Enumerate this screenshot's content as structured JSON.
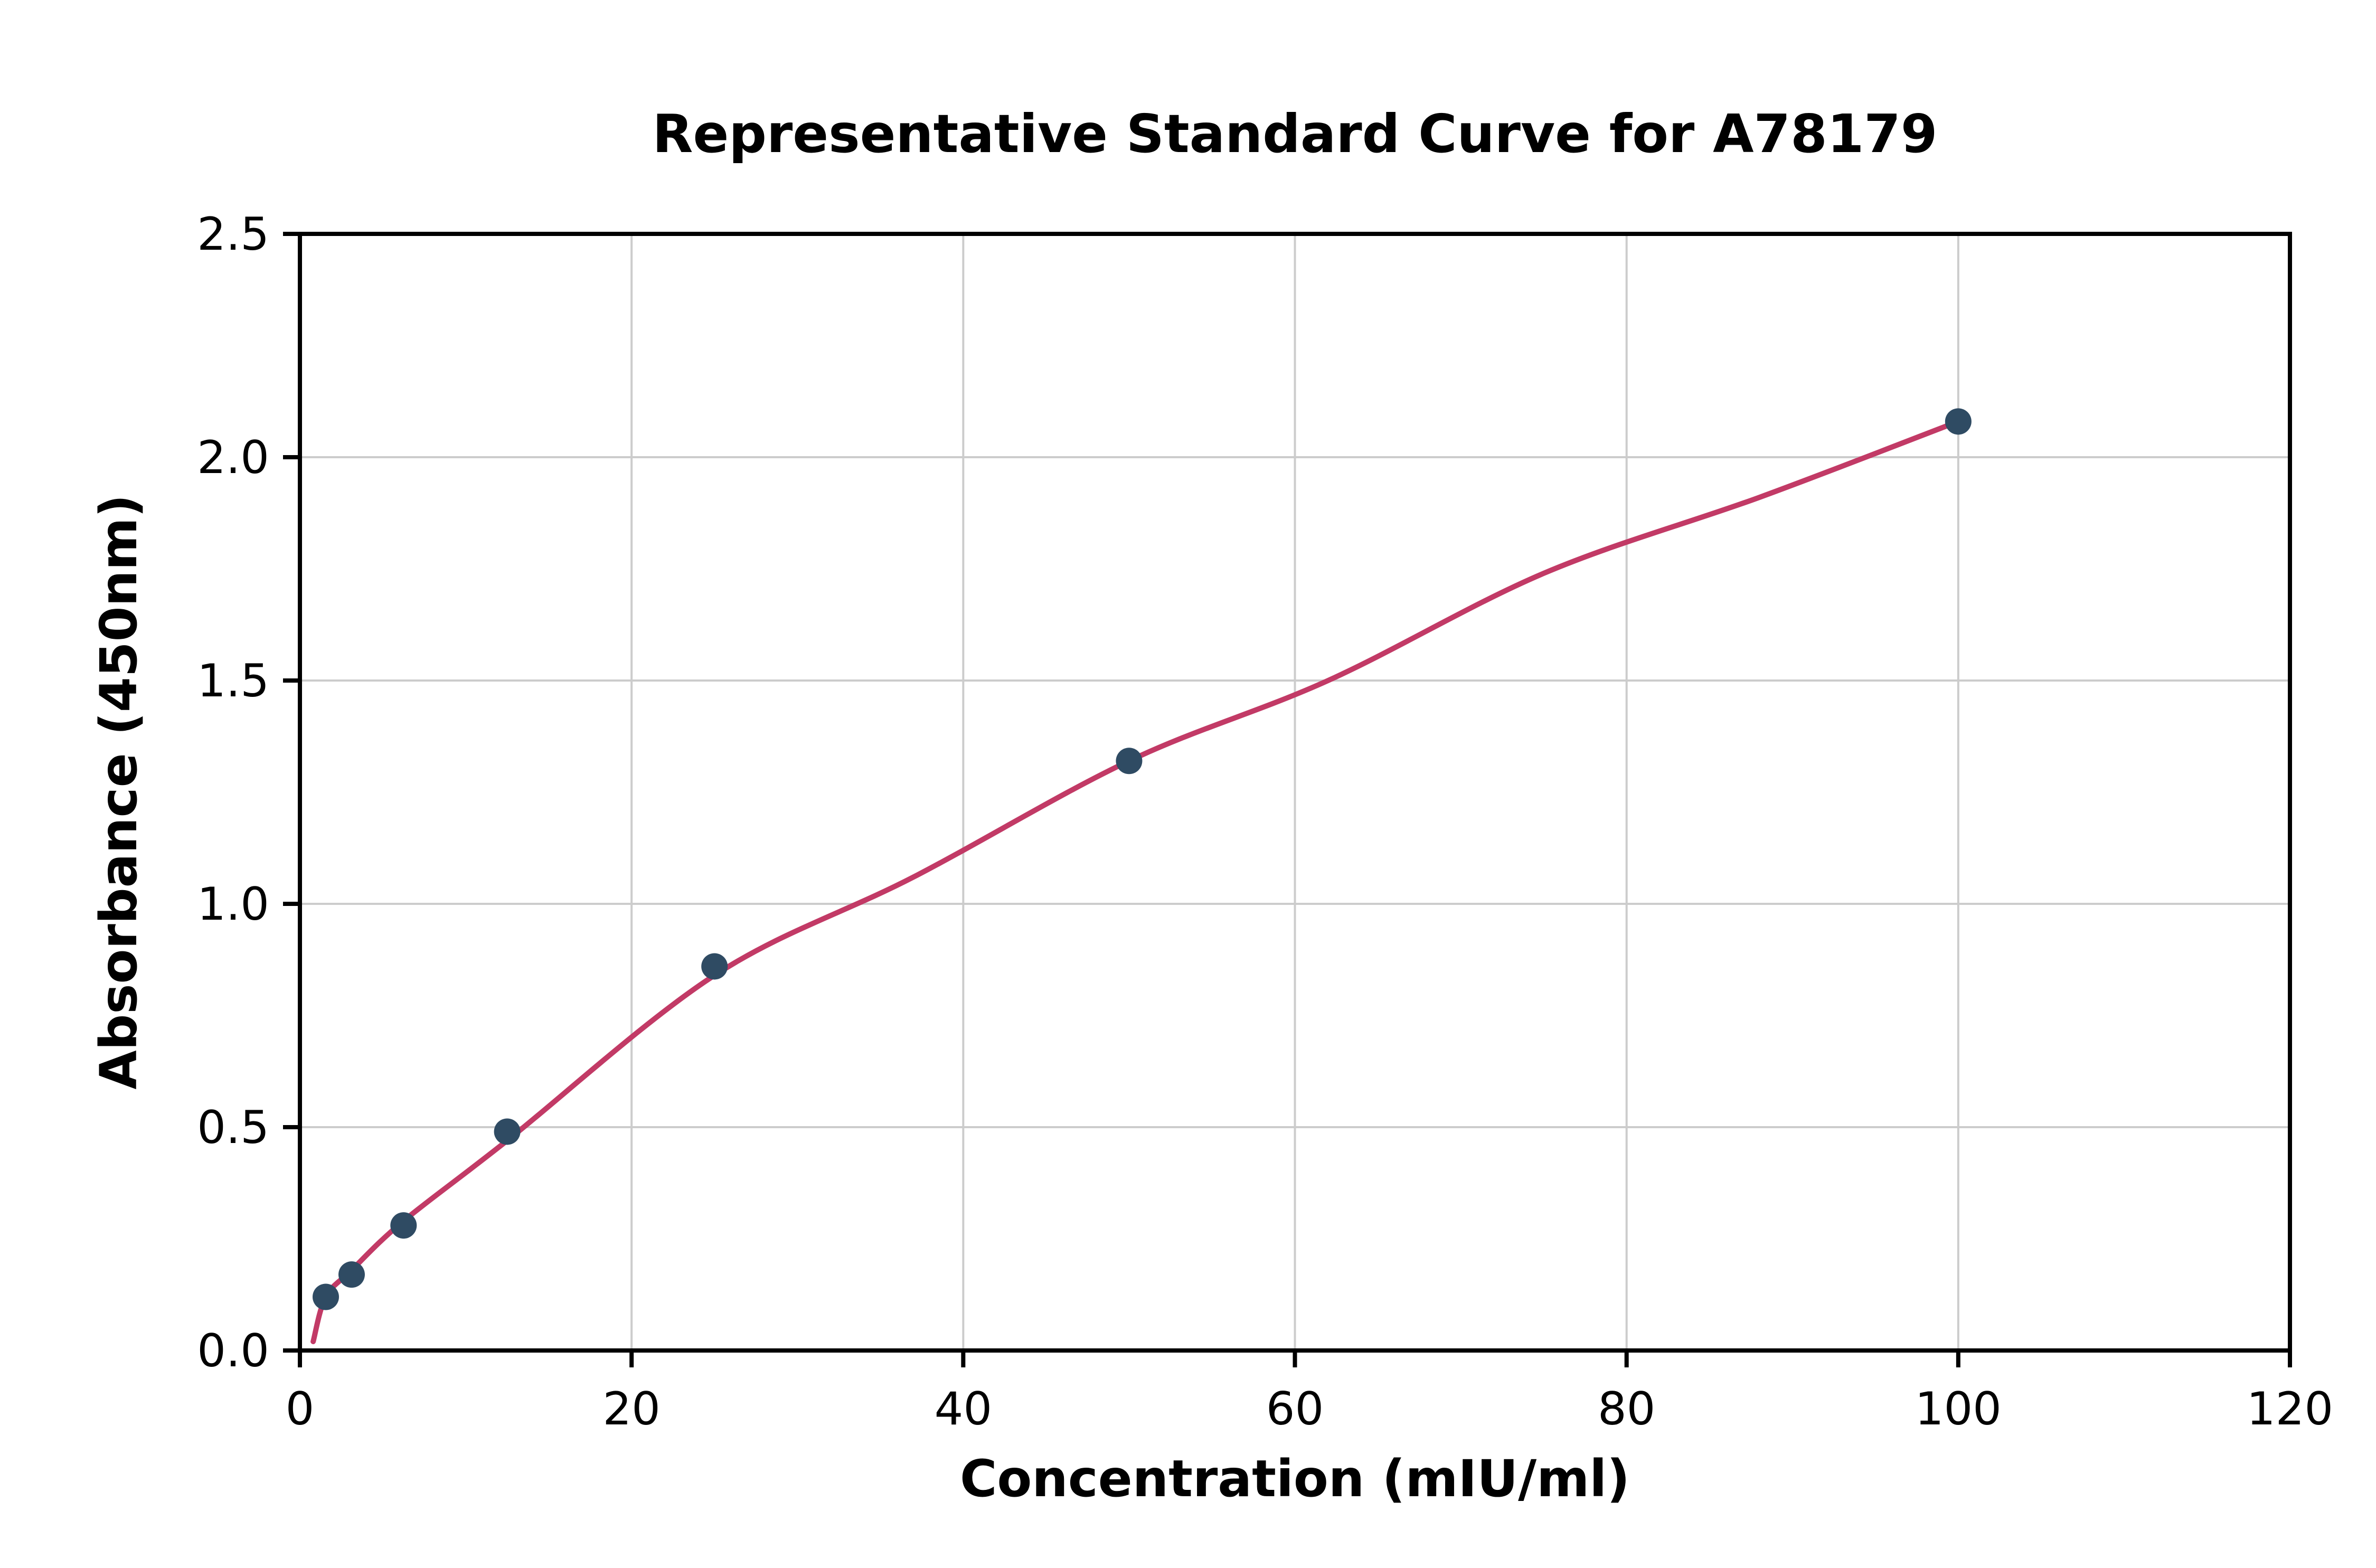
{
  "chart_data": {
    "type": "scatter",
    "title": "Representative Standard Curve for A78179",
    "xlabel": "Concentration (mIU/ml)",
    "ylabel": "Absorbance (450nm)",
    "xlim": [
      0,
      120
    ],
    "ylim": [
      0,
      2.5
    ],
    "grid": true,
    "legend": false,
    "x_ticks": [
      0,
      20,
      40,
      60,
      80,
      100,
      120
    ],
    "x_tick_labels": [
      "0",
      "20",
      "40",
      "60",
      "80",
      "100",
      "120"
    ],
    "y_ticks": [
      0.0,
      0.5,
      1.0,
      1.5,
      2.0,
      2.5
    ],
    "y_tick_labels": [
      "0.0",
      "0.5",
      "1.0",
      "1.5",
      "2.0",
      "2.5"
    ],
    "points": [
      [
        1.56,
        0.12
      ],
      [
        3.12,
        0.17
      ],
      [
        6.25,
        0.28
      ],
      [
        12.5,
        0.49
      ],
      [
        25,
        0.86
      ],
      [
        50,
        1.32
      ],
      [
        100,
        2.08
      ]
    ],
    "fit_curve": [
      [
        0.8,
        0.02
      ],
      [
        1.56,
        0.12
      ],
      [
        3.12,
        0.18
      ],
      [
        6.25,
        0.29
      ],
      [
        12.5,
        0.47
      ],
      [
        25,
        0.84
      ],
      [
        37,
        1.06
      ],
      [
        50,
        1.32
      ],
      [
        62,
        1.5
      ],
      [
        75,
        1.74
      ],
      [
        88,
        1.91
      ],
      [
        100,
        2.08
      ]
    ],
    "colors": {
      "point": "#2f4b63",
      "curve": "#c23a66",
      "grid": "#cccccc",
      "axis": "#000000",
      "background": "#ffffff"
    }
  }
}
